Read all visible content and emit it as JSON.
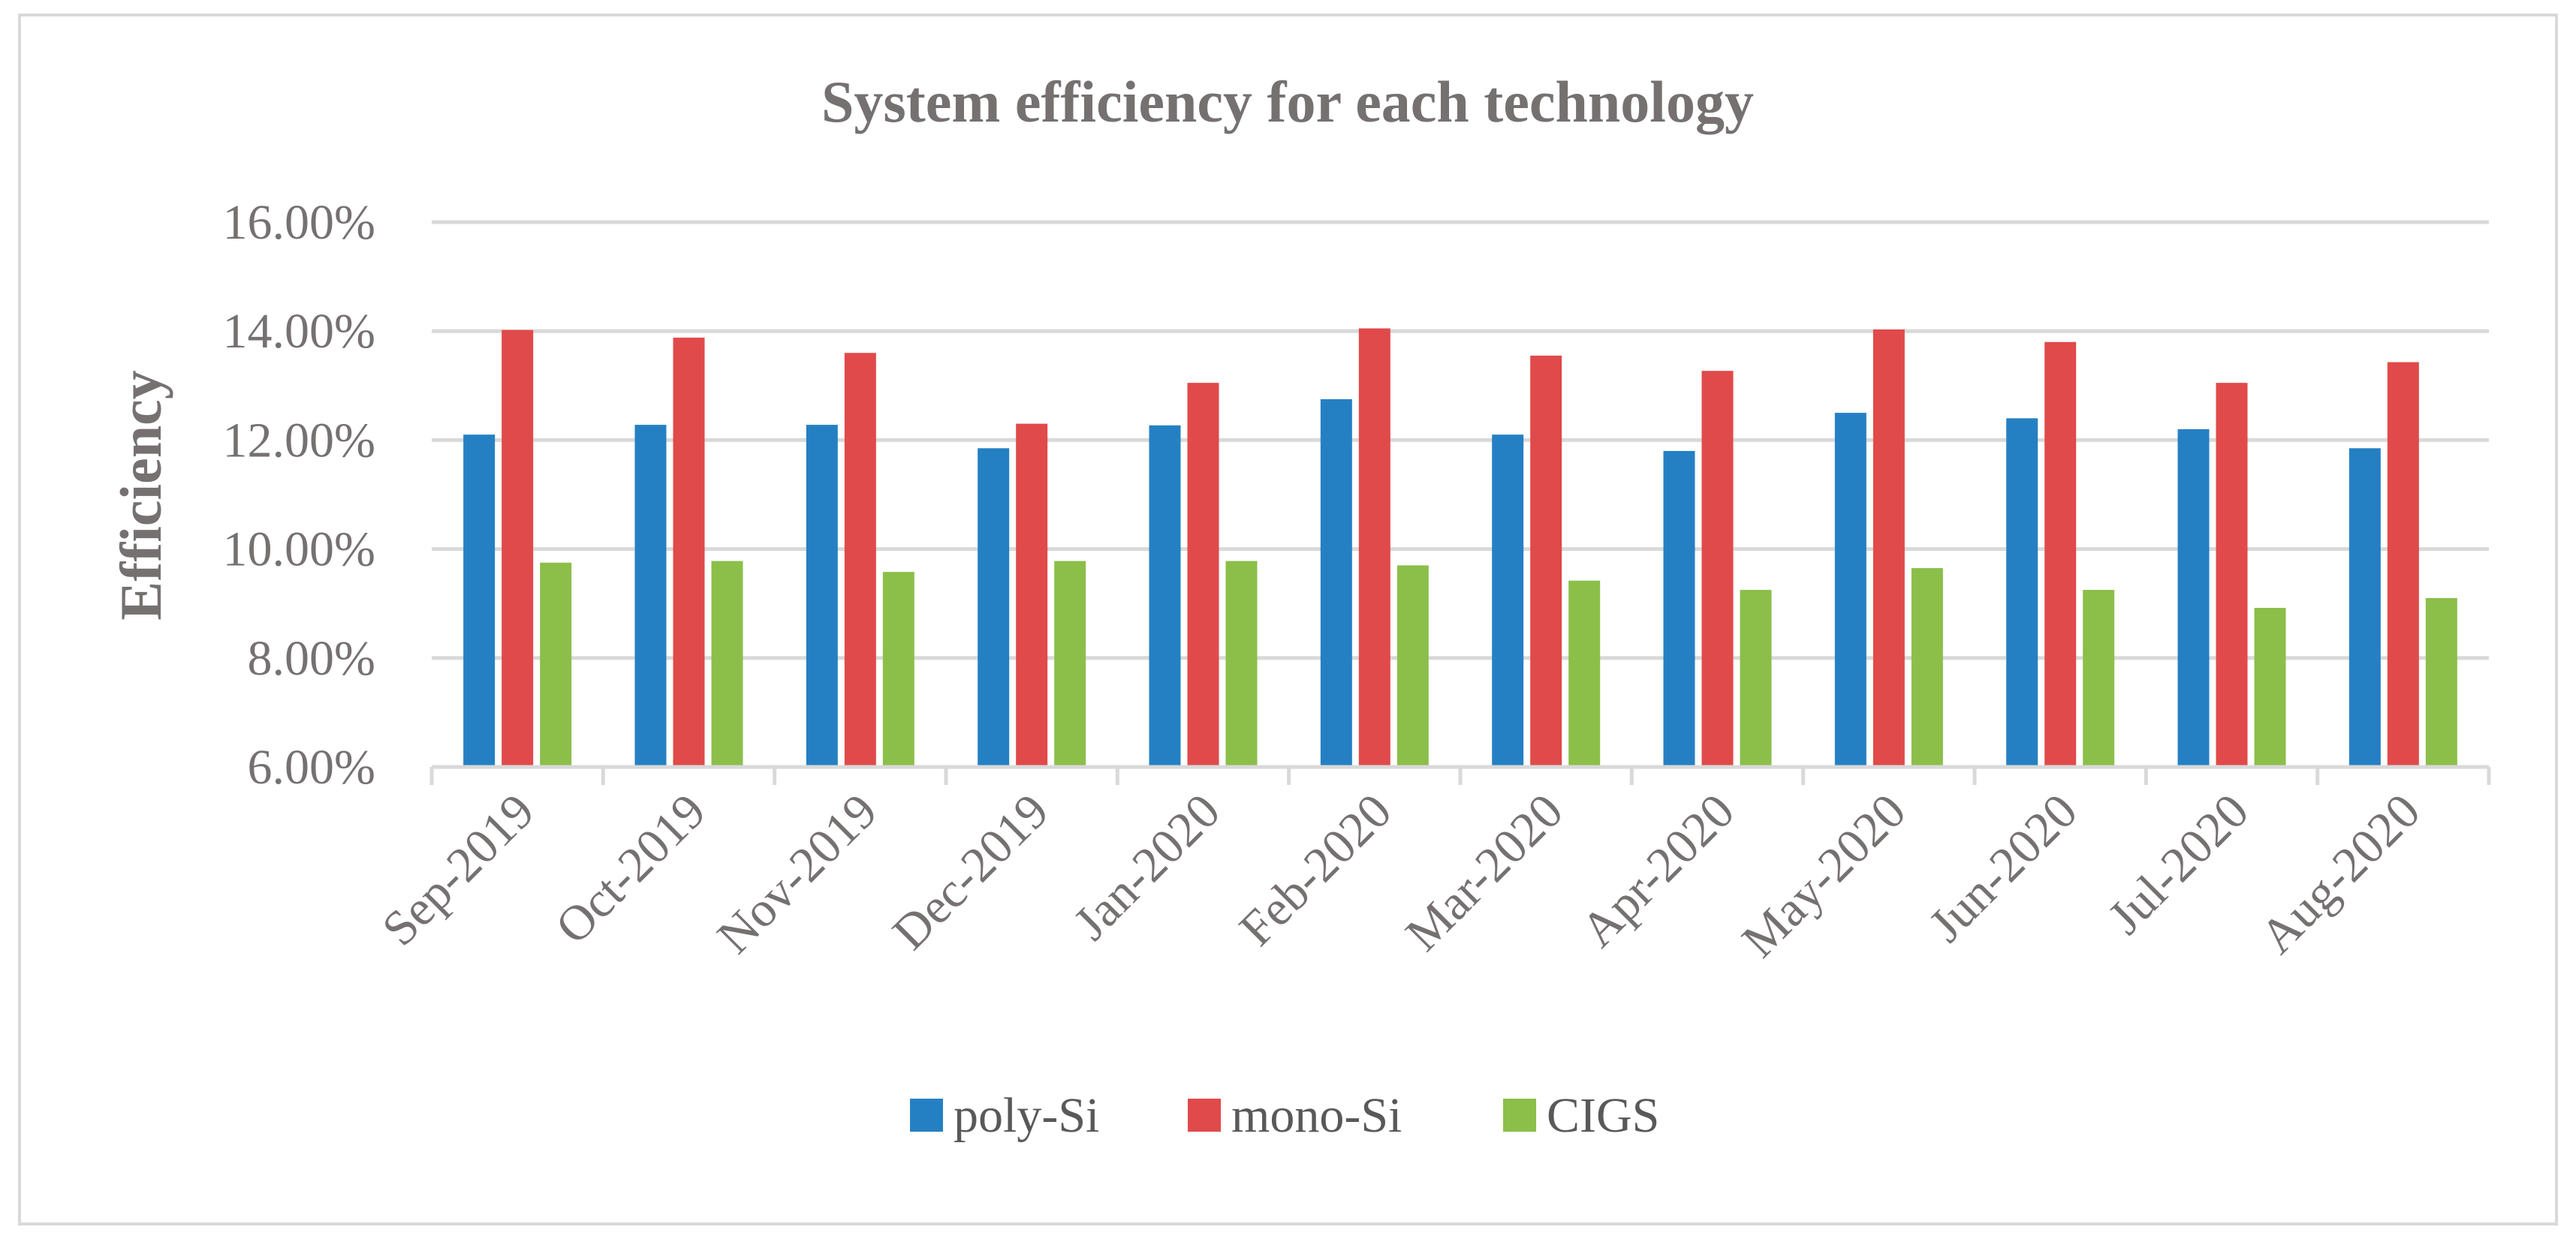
{
  "chart_data": {
    "type": "bar",
    "title": "System efficiency for each technology",
    "xlabel": "",
    "ylabel": "Efficiency",
    "ylim": [
      6.0,
      16.0
    ],
    "yticks": [
      6.0,
      8.0,
      10.0,
      12.0,
      14.0,
      16.0
    ],
    "ytick_labels": [
      "6.00%",
      "8.00%",
      "10.00%",
      "12.00%",
      "14.00%",
      "16.00%"
    ],
    "grid": true,
    "legend_position": "bottom",
    "categories": [
      "Sep-2019",
      "Oct-2019",
      "Nov-2019",
      "Dec-2019",
      "Jan-2020",
      "Feb-2020",
      "Mar-2020",
      "Apr-2020",
      "May-2020",
      "Jun-2020",
      "Jul-2020",
      "Aug-2020"
    ],
    "series": [
      {
        "name": "poly-Si",
        "color": "#2580c3",
        "values": [
          12.1,
          12.28,
          12.28,
          11.85,
          12.27,
          12.75,
          12.1,
          11.8,
          12.5,
          12.4,
          12.2,
          11.85
        ]
      },
      {
        "name": "mono-Si",
        "color": "#e04a4a",
        "values": [
          14.02,
          13.88,
          13.6,
          12.3,
          13.05,
          14.05,
          13.55,
          13.27,
          14.03,
          13.8,
          13.05,
          13.43
        ]
      },
      {
        "name": "CIGS",
        "color": "#8bbf4a",
        "values": [
          9.75,
          9.78,
          9.58,
          9.78,
          9.78,
          9.7,
          9.42,
          9.25,
          9.65,
          9.25,
          8.92,
          9.1
        ]
      }
    ]
  }
}
